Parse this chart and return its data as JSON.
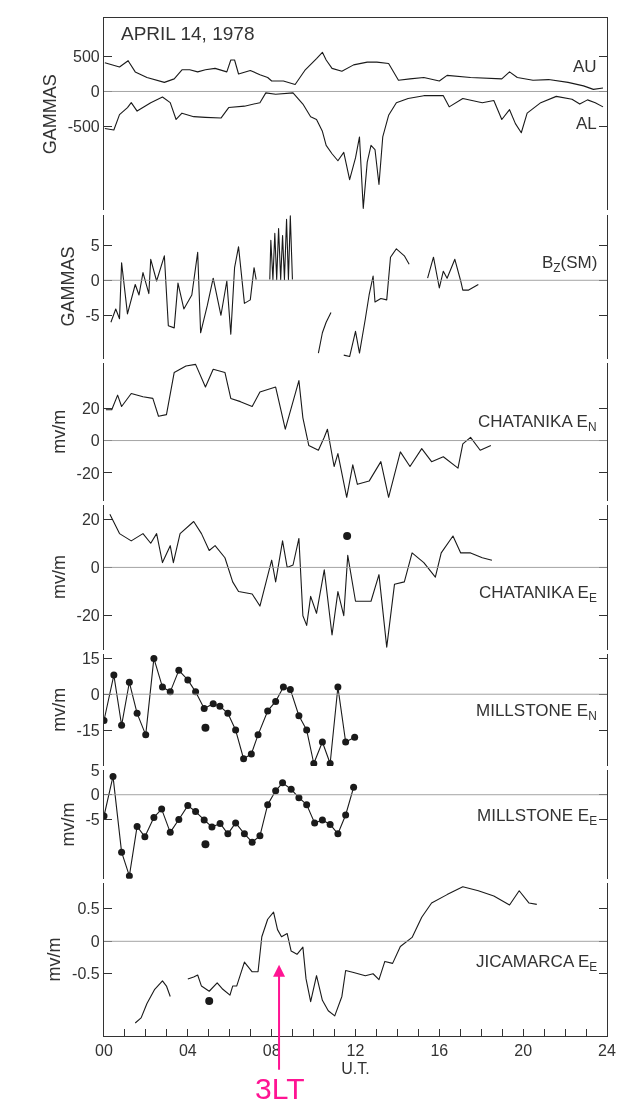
{
  "chart_data": [
    {
      "type": "line",
      "title": "APRIL 14, 1978",
      "ylabel": "GAMMAS",
      "xlim": [
        0,
        24
      ],
      "ylim": [
        -1700,
        1050
      ],
      "yticks": [
        500,
        0,
        -500
      ],
      "tick_labels": "y",
      "ref_lines": [
        {
          "axis": "y",
          "value": 0
        }
      ],
      "series": [
        {
          "name": "AU",
          "color": "#1a1a1a",
          "x": [
            0.04,
            0.74,
            1.15,
            1.49,
            2.05,
            2.88,
            3.35,
            3.72,
            4.09,
            4.47,
            4.84,
            5.3,
            5.86,
            6.05,
            6.23,
            6.42,
            6.98,
            7.44,
            7.81,
            8.0,
            8.56,
            9.12,
            9.58,
            10.14,
            10.42,
            10.6,
            10.88,
            11.35,
            11.91,
            12.56,
            13.02,
            13.58,
            14.05,
            14.6,
            15.26,
            16.0,
            16.37,
            17.49,
            18.98,
            19.35,
            19.72,
            20.47,
            21.21,
            22.14,
            22.88,
            23.35,
            23.81
          ],
          "values": [
            410,
            350,
            440,
            280,
            200,
            130,
            180,
            310,
            310,
            280,
            310,
            330,
            280,
            450,
            450,
            250,
            300,
            240,
            200,
            150,
            150,
            100,
            300,
            470,
            560,
            450,
            330,
            290,
            380,
            420,
            420,
            400,
            160,
            180,
            200,
            150,
            230,
            200,
            180,
            280,
            200,
            160,
            170,
            130,
            80,
            30,
            50
          ]
        },
        {
          "name": "AL",
          "color": "#1a1a1a",
          "x": [
            0.04,
            0.47,
            0.74,
            1.12,
            1.3,
            1.58,
            2.23,
            2.79,
            3.16,
            3.44,
            3.72,
            4.28,
            4.84,
            5.58,
            5.95,
            6.7,
            7.44,
            7.72,
            8.19,
            9.02,
            9.49,
            9.86,
            10.14,
            10.42,
            10.6,
            10.88,
            11.16,
            11.44,
            11.72,
            12.0,
            12.19,
            12.37,
            12.56,
            12.74,
            12.93,
            13.12,
            13.3,
            13.58,
            13.95,
            14.51,
            15.26,
            16.19,
            16.47,
            17.12,
            18.05,
            18.6,
            18.98,
            19.35,
            19.63,
            19.91,
            20.19,
            20.84,
            21.58,
            22.33,
            22.7,
            23.07,
            23.44,
            23.81
          ],
          "values": [
            -530,
            -550,
            -330,
            -230,
            -160,
            -280,
            -160,
            -80,
            -160,
            -400,
            -310,
            -360,
            -370,
            -380,
            -230,
            -210,
            -160,
            -20,
            -40,
            -20,
            -180,
            -360,
            -400,
            -570,
            -770,
            -890,
            -990,
            -870,
            -1260,
            -950,
            -650,
            -1670,
            -1010,
            -770,
            -830,
            -1330,
            -650,
            -340,
            -160,
            -100,
            -60,
            -60,
            -220,
            -100,
            -160,
            -130,
            -400,
            -260,
            -460,
            -590,
            -310,
            -160,
            -70,
            -110,
            -180,
            -120,
            -160,
            -220
          ]
        }
      ]
    },
    {
      "type": "line",
      "ylabel": "GAMMAS",
      "xlim": [
        0,
        24
      ],
      "ylim": [
        -11.2,
        9.4
      ],
      "yticks": [
        5,
        0,
        -5
      ],
      "tick_labels": "y",
      "ref_lines": [
        {
          "axis": "y",
          "value": 0
        }
      ],
      "series": [
        {
          "name": "B$_{Z}$(SM)",
          "color": "#1a1a1a",
          "x": [
            0.33,
            0.56,
            0.74,
            0.84,
            1.12,
            1.49,
            1.67,
            1.86,
            2.14,
            2.23,
            2.51,
            2.88,
            3.07,
            3.35,
            3.53,
            3.81,
            4.19,
            4.47,
            4.61,
            4.93,
            5.21,
            5.58,
            5.86,
            6.05,
            6.23,
            6.42,
            6.7,
            6.98,
            7.16,
            7.26,
            7.6,
            7.91,
            7.96,
            8.06,
            8.15,
            8.24,
            8.33,
            8.43,
            8.52,
            8.61,
            8.71,
            8.8,
            8.89,
            8.99,
            9.6,
            10.23,
            10.42,
            10.6,
            10.83,
            11.1,
            11.44,
            11.72,
            12.0,
            12.19,
            12.47,
            12.65,
            12.84,
            12.93,
            13.21,
            13.49,
            13.67,
            13.95,
            14.33,
            14.56,
            15.0,
            15.44,
            15.72,
            16.0,
            16.19,
            16.37,
            16.74,
            17.02,
            17.12,
            17.4,
            17.86
          ],
          "values": [
            -6.0,
            -4.1,
            -5.5,
            2.5,
            -4.8,
            -0.6,
            -2.1,
            1.1,
            -1.9,
            3.0,
            -0.1,
            3.5,
            -6.5,
            -6.8,
            -0.4,
            -4.1,
            -2.1,
            4.0,
            -7.5,
            -3.6,
            0.3,
            -5.0,
            -0.1,
            -7.7,
            1.8,
            4.8,
            -3.3,
            -2.8,
            1.8,
            0.1,
            null,
            0.1,
            5.7,
            0.1,
            6.7,
            0.1,
            7.4,
            0.1,
            6.4,
            0.1,
            8.7,
            0.1,
            9.2,
            0.1,
            null,
            -10.4,
            -7.5,
            -6.0,
            -4.6,
            null,
            -10.7,
            -10.9,
            -7.3,
            -10.4,
            -5.5,
            -2.1,
            0.6,
            -3.1,
            -2.6,
            -2.8,
            3.3,
            4.5,
            3.5,
            2.3,
            null,
            0.3,
            3.3,
            -1.1,
            1.3,
            0.3,
            3.0,
            -0.1,
            -1.4,
            -1.4,
            -0.6
          ]
        }
      ]
    },
    {
      "type": "line",
      "ylabel": "mv/m",
      "xlim": [
        0,
        24
      ],
      "ylim": [
        -37,
        48
      ],
      "yticks": [
        20,
        0,
        -20
      ],
      "tick_labels": "y",
      "ref_lines": [
        {
          "axis": "y",
          "value": 0
        }
      ],
      "series": [
        {
          "name": "CHATANIKA E$_{N}$",
          "color": "#1a1a1a",
          "x": [
            0.09,
            0.37,
            0.65,
            0.84,
            1.3,
            1.86,
            2.33,
            2.6,
            2.98,
            3.35,
            3.91,
            4.37,
            4.84,
            5.21,
            5.77,
            6.05,
            6.51,
            7.07,
            7.44,
            8.19,
            8.65,
            9.3,
            9.49,
            9.77,
            10.23,
            10.51,
            10.66,
            10.98,
            11.16,
            11.58,
            11.87,
            12.09,
            12.65,
            13.21,
            13.58,
            14.14,
            14.6,
            15.16,
            15.63,
            16.19,
            16.89,
            17.12,
            17.49,
            17.95,
            18.46
          ],
          "values": [
            19,
            19,
            28,
            21,
            29,
            27,
            26,
            15,
            16,
            42,
            46,
            47,
            33,
            44,
            42,
            26,
            24,
            21,
            30,
            33,
            7,
            37,
            14,
            -3,
            -6,
            2,
            7,
            -16,
            -8,
            -35,
            -15,
            -27,
            -25,
            -13,
            -35,
            -7,
            -16,
            -5,
            -13,
            -10,
            -17,
            -2,
            2,
            -6,
            -3
          ]
        }
      ]
    },
    {
      "type": "line",
      "ylabel": "mv/m",
      "xlim": [
        0,
        24
      ],
      "ylim": [
        -34,
        26
      ],
      "yticks": [
        20,
        0,
        -20
      ],
      "tick_labels": "y",
      "ref_lines": [
        {
          "axis": "y",
          "value": 0
        }
      ],
      "series": [
        {
          "name": "CHATANIKA E$_{E}$",
          "color": "#1a1a1a",
          "x": [
            0.28,
            0.74,
            1.3,
            1.86,
            2.23,
            2.51,
            2.79,
            3.16,
            3.31,
            3.63,
            4.28,
            4.65,
            5.02,
            5.3,
            5.77,
            6.14,
            6.42,
            7.07,
            7.44,
            8.0,
            8.19,
            8.52,
            8.74,
            9.02,
            9.3,
            9.49,
            9.67,
            9.86,
            10.14,
            10.51,
            10.88,
            11.16,
            11.44,
            11.63,
            12.0,
            12.74,
            13.12,
            13.49,
            13.86,
            14.33,
            14.7,
            15.26,
            15.81,
            16.09,
            16.65,
            17.02,
            17.49,
            18.05,
            18.51
          ],
          "values": [
            22,
            14,
            11,
            14,
            10,
            14,
            2,
            9,
            2,
            14,
            19,
            14,
            7,
            9,
            4,
            -6,
            -10,
            -11,
            -16,
            3,
            -6,
            11,
            0,
            1,
            12,
            -20,
            -24,
            -12,
            -19,
            -1,
            -28,
            -10,
            -20,
            5,
            -14,
            -14,
            -3,
            -33,
            -7,
            -6,
            6,
            2,
            -4,
            6,
            13,
            6,
            6,
            4,
            3
          ]
        },
        {
          "type": "scatter",
          "marker": "circle",
          "color": "#1a1a1a",
          "x": [
            11.6
          ],
          "values": [
            13
          ]
        }
      ]
    },
    {
      "type": "line",
      "ylabel": "mv/m",
      "xlim": [
        0,
        24
      ],
      "ylim": [
        -30,
        17
      ],
      "yticks": [
        15,
        0,
        -15
      ],
      "tick_labels": "y",
      "ref_lines": [
        {
          "axis": "y",
          "value": 0
        }
      ],
      "series": [
        {
          "name": "MILLSTONE E$_{N}$",
          "color": "#1a1a1a",
          "marker": "circle",
          "x": [
            0.0,
            0.47,
            0.84,
            1.21,
            1.58,
            1.99,
            2.38,
            2.79,
            3.16,
            3.57,
            4.0,
            4.37,
            4.78,
            5.21,
            5.53,
            5.91,
            6.28,
            6.66,
            7.03,
            7.35,
            7.81,
            8.19,
            8.56,
            8.89,
            9.3,
            9.67,
            10.01,
            10.42,
            10.79,
            11.16,
            11.53,
            11.96
          ],
          "values": [
            -11,
            8,
            -13,
            5,
            -8,
            -17,
            15,
            3,
            1,
            10,
            6,
            1,
            -6,
            -4,
            -5,
            -8,
            -15,
            -27,
            -25,
            -17,
            -7,
            -3,
            3,
            2,
            -9,
            -15,
            -29,
            -20,
            -29,
            3,
            -20,
            -18
          ]
        },
        {
          "type": "scatter",
          "marker": "circle",
          "color": "#1a1a1a",
          "x": [
            4.84
          ],
          "values": [
            -14
          ]
        }
      ]
    },
    {
      "type": "line",
      "ylabel": "mv/m",
      "xlim": [
        0,
        24
      ],
      "ylim": [
        -17,
        5
      ],
      "yticks": [
        5,
        0,
        -5
      ],
      "tick_labels": "y",
      "ref_lines": [
        {
          "axis": "y",
          "value": 0
        }
      ],
      "series": [
        {
          "name": "MILLSTONE E$_{E}$",
          "color": "#1a1a1a",
          "marker": "circle",
          "x": [
            0.0,
            0.43,
            0.84,
            1.21,
            1.58,
            1.95,
            2.38,
            2.75,
            3.16,
            3.57,
            4.0,
            4.37,
            4.78,
            5.15,
            5.54,
            5.91,
            6.28,
            6.7,
            7.07,
            7.44,
            7.81,
            8.19,
            8.52,
            8.93,
            9.3,
            9.67,
            10.05,
            10.42,
            10.79,
            11.16,
            11.53,
            11.91
          ],
          "values": [
            -4.3,
            3.7,
            -11.6,
            -16.4,
            -6.4,
            -8.5,
            -4.6,
            -2.9,
            -7.6,
            -5.0,
            -2.2,
            -3.4,
            -5.1,
            -6.5,
            -5.8,
            -7.9,
            -5.7,
            -7.9,
            -9.6,
            -8.3,
            -2.0,
            0.8,
            2.4,
            1.1,
            -0.6,
            -2.0,
            -5.7,
            -5.1,
            -6.0,
            -7.9,
            -4.1,
            1.5
          ]
        },
        {
          "type": "scatter",
          "marker": "circle",
          "color": "#1a1a1a",
          "x": [
            4.84
          ],
          "values": [
            -10
          ]
        }
      ]
    },
    {
      "type": "line",
      "ylabel": "mv/m",
      "xlabel": "U.T.",
      "xlim": [
        0,
        24
      ],
      "ylim": [
        -1.46,
        0.9
      ],
      "yticks": [
        0.5,
        0,
        -0.5
      ],
      "xticks": [
        {
          "value": 0,
          "label": "00"
        },
        {
          "value": 1,
          "label": null
        },
        {
          "value": 2,
          "label": null
        },
        {
          "value": 3,
          "label": null
        },
        {
          "value": 4,
          "label": "04"
        },
        {
          "value": 5,
          "label": null
        },
        {
          "value": 6,
          "label": null
        },
        {
          "value": 7,
          "label": null
        },
        {
          "value": 8,
          "label": "08"
        },
        {
          "value": 9,
          "label": null
        },
        {
          "value": 10,
          "label": null
        },
        {
          "value": 11,
          "label": null
        },
        {
          "value": 12,
          "label": "12"
        },
        {
          "value": 13,
          "label": null
        },
        {
          "value": 14,
          "label": null
        },
        {
          "value": 15,
          "label": null
        },
        {
          "value": 16,
          "label": "16"
        },
        {
          "value": 17,
          "label": null
        },
        {
          "value": 18,
          "label": null
        },
        {
          "value": 19,
          "label": null
        },
        {
          "value": 20,
          "label": "20"
        },
        {
          "value": 21,
          "label": null
        },
        {
          "value": 22,
          "label": null
        },
        {
          "value": 23,
          "label": null
        },
        {
          "value": 24,
          "label": "24"
        }
      ],
      "ref_lines": [
        {
          "axis": "y",
          "value": 0
        }
      ],
      "annotations": [
        "3LT"
      ],
      "series": [
        {
          "name": "JICAMARCA E$_{E}$",
          "color": "#1a1a1a",
          "x": [
            1.49,
            1.77,
            2.05,
            2.42,
            2.79,
            2.98,
            3.16,
            3.6,
            4.0,
            4.28,
            4.47,
            4.65,
            5.02,
            5.4,
            5.67,
            6.01,
            6.14,
            6.33,
            6.7,
            7.07,
            7.35,
            7.53,
            7.81,
            8.09,
            8.28,
            8.47,
            8.74,
            8.93,
            9.21,
            9.49,
            9.64,
            9.86,
            10.14,
            10.42,
            10.7,
            11.01,
            11.35,
            11.53,
            11.91,
            12.47,
            12.84,
            13.12,
            13.4,
            13.77,
            14.14,
            14.7,
            15.16,
            15.63,
            16.37,
            17.12,
            17.86,
            18.6,
            19.35,
            19.81,
            20.28,
            20.65
          ],
          "values": [
            -1.26,
            -1.18,
            -0.96,
            -0.74,
            -0.61,
            -0.69,
            -0.85,
            null,
            -0.58,
            -0.55,
            -0.52,
            -0.69,
            -0.77,
            -0.64,
            -0.74,
            -0.83,
            -0.69,
            -0.69,
            -0.32,
            -0.47,
            -0.47,
            0.07,
            0.34,
            0.45,
            0.18,
            0.07,
            0.12,
            -0.15,
            -0.2,
            -0.09,
            -0.58,
            -0.93,
            -0.53,
            -0.91,
            -1.07,
            -1.15,
            -0.85,
            -0.45,
            -0.48,
            -0.53,
            -0.5,
            -0.59,
            -0.31,
            -0.34,
            -0.08,
            0.06,
            0.37,
            0.59,
            0.72,
            0.84,
            0.78,
            0.7,
            0.56,
            0.78,
            0.59,
            0.57
          ]
        },
        {
          "type": "scatter",
          "marker": "circle",
          "color": "#1a1a1a",
          "x": [
            5.02
          ],
          "values": [
            -0.92
          ]
        }
      ]
    }
  ]
}
